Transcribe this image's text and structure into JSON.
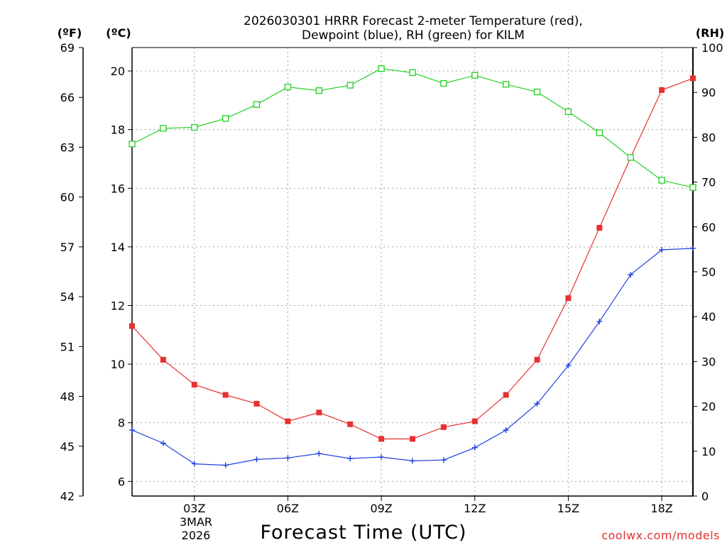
{
  "chart_data": {
    "type": "line",
    "title_lines": [
      "2026030301 HRRR Forecast 2-meter Temperature (red),",
      "Dewpoint (blue), RH (green) for KILM"
    ],
    "xlabel": "Forecast Time (UTC)",
    "credit": "coolwx.com/models",
    "units": {
      "fahrenheit": "(ºF)",
      "celsius": "(ºC)",
      "rh": "(RH)"
    },
    "x": [
      1,
      2,
      3,
      4,
      5,
      6,
      7,
      8,
      9,
      10,
      11,
      12,
      13,
      14,
      15,
      16,
      17,
      18,
      19
    ],
    "xlim": [
      1,
      19
    ],
    "x_ticks": [
      {
        "at": 3,
        "label": "03Z"
      },
      {
        "at": 6,
        "label": "06Z"
      },
      {
        "at": 9,
        "label": "09Z"
      },
      {
        "at": 12,
        "label": "12Z"
      },
      {
        "at": 15,
        "label": "15Z"
      },
      {
        "at": 18,
        "label": "18Z"
      }
    ],
    "date_label": [
      "3MAR",
      "2026"
    ],
    "ylim_c": [
      5.5,
      20.8
    ],
    "yticks_c": [
      "6",
      "8",
      "10",
      "12",
      "14",
      "16",
      "18",
      "20"
    ],
    "ylim_f": [
      42,
      69
    ],
    "yticks_f": [
      "42",
      "45",
      "48",
      "51",
      "54",
      "57",
      "60",
      "63",
      "66",
      "69"
    ],
    "ylim_rh": [
      0,
      100
    ],
    "yticks_rh": [
      "0",
      "10",
      "20",
      "30",
      "40",
      "50",
      "60",
      "70",
      "80",
      "90",
      "100"
    ],
    "series": [
      {
        "name": "2-meter Temperature",
        "axis": "celsius",
        "color": "#e83030",
        "marker": "filled-square",
        "values": [
          11.3,
          10.15,
          9.3,
          8.95,
          8.65,
          8.05,
          8.35,
          7.95,
          7.45,
          7.45,
          7.85,
          8.05,
          8.95,
          10.15,
          12.25,
          14.65,
          17.05,
          19.35,
          19.75
        ]
      },
      {
        "name": "Dewpoint",
        "axis": "celsius",
        "color": "#2040e0",
        "marker": "plus",
        "values": [
          7.75,
          7.3,
          6.6,
          6.55,
          6.75,
          6.8,
          6.95,
          6.78,
          6.83,
          6.7,
          6.73,
          7.15,
          7.75,
          8.65,
          9.95,
          11.45,
          13.05,
          13.9,
          13.95
        ]
      },
      {
        "name": "RH",
        "axis": "rh",
        "color": "#20d020",
        "marker": "open-square",
        "values": [
          78.5,
          82.0,
          82.2,
          84.2,
          87.3,
          91.2,
          90.4,
          91.6,
          95.3,
          94.4,
          92.0,
          93.8,
          91.8,
          90.1,
          85.7,
          81.0,
          75.5,
          70.4,
          68.8
        ]
      }
    ]
  }
}
